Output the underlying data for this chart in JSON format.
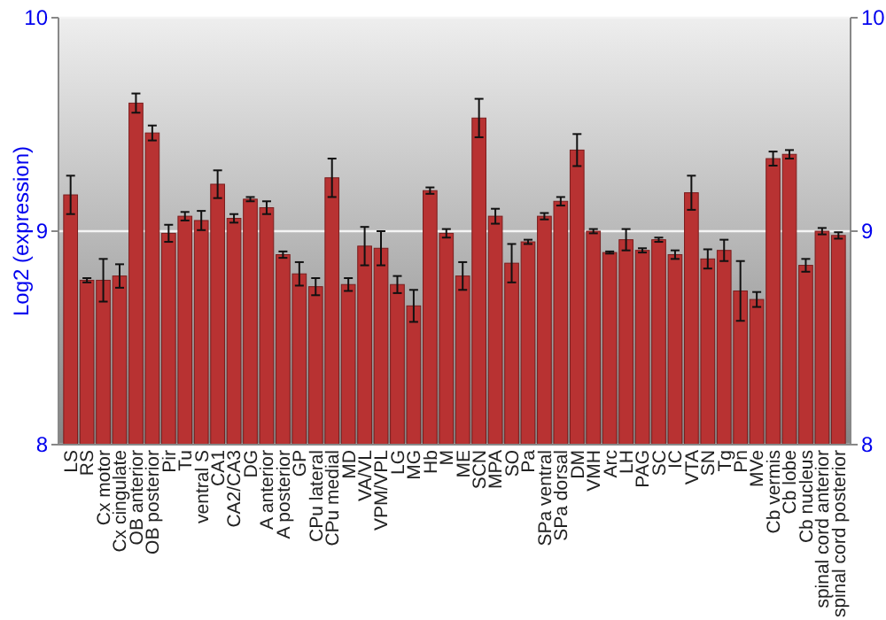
{
  "chart_data": {
    "type": "bar",
    "ylabel": "Log2 (expression)",
    "categories": [
      "LS",
      "RS",
      "Cx motor",
      "Cx cingulate",
      "OB anterior",
      "OB posterior",
      "Pir",
      "Tu",
      "ventral S",
      "CA1",
      "CA2/CA3",
      "DG",
      "A anterior",
      "A posterior",
      "GP",
      "CPu lateral",
      "CPu medial",
      "MD",
      "VA/VL",
      "VPM/VPL",
      "LG",
      "MG",
      "Hb",
      "M",
      "ME",
      "SCN",
      "MPA",
      "SO",
      "Pa",
      "SPa ventral",
      "SPa dorsal",
      "DM",
      "VMH",
      "Arc",
      "LH",
      "PAG",
      "SC",
      "IC",
      "VTA",
      "SN",
      "Tg",
      "Pn",
      "MVe",
      "Cb vermis",
      "Cb lobe",
      "Cb nucleus",
      "spinal cord anterior",
      "spinal cord posterior"
    ],
    "values": [
      9.17,
      8.77,
      8.77,
      8.79,
      9.6,
      9.46,
      8.99,
      9.07,
      9.05,
      9.22,
      9.06,
      9.15,
      9.11,
      8.89,
      8.8,
      8.74,
      9.25,
      8.75,
      8.93,
      8.92,
      8.75,
      8.65,
      9.19,
      8.99,
      8.79,
      9.53,
      9.07,
      8.85,
      8.95,
      9.07,
      9.14,
      9.38,
      9.0,
      8.9,
      8.96,
      8.91,
      8.96,
      8.89,
      9.18,
      8.87,
      8.91,
      8.72,
      8.68,
      9.34,
      9.36,
      8.84,
      9.0,
      8.98
    ],
    "errors": [
      0.09,
      0.01,
      0.1,
      0.055,
      0.045,
      0.035,
      0.04,
      0.02,
      0.045,
      0.065,
      0.02,
      0.01,
      0.03,
      0.015,
      0.055,
      0.04,
      0.09,
      0.03,
      0.09,
      0.08,
      0.04,
      0.075,
      0.015,
      0.02,
      0.065,
      0.09,
      0.035,
      0.09,
      0.01,
      0.015,
      0.02,
      0.075,
      0.01,
      0.005,
      0.05,
      0.01,
      0.01,
      0.02,
      0.08,
      0.045,
      0.05,
      0.14,
      0.035,
      0.033,
      0.02,
      0.03,
      0.015,
      0.015
    ],
    "color": "#b83232",
    "ylim": [
      8,
      10
    ],
    "yticks": [
      8,
      9,
      10
    ],
    "y2lim": [
      8,
      10
    ],
    "y2ticks": [
      8,
      9,
      10
    ],
    "grid": "y"
  }
}
